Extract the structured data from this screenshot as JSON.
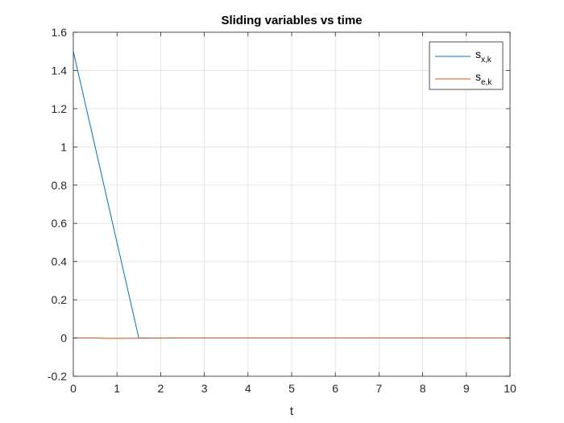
{
  "chart_data": {
    "type": "line",
    "title": "Sliding variables vs time",
    "xlabel": "t",
    "ylabel": "",
    "xlim": [
      0,
      10
    ],
    "ylim": [
      -0.2,
      1.6
    ],
    "xticks": [
      0,
      1,
      2,
      3,
      4,
      5,
      6,
      7,
      8,
      9,
      10
    ],
    "yticks": [
      -0.2,
      0,
      0.2,
      0.4,
      0.6,
      0.8,
      1,
      1.2,
      1.4,
      1.6
    ],
    "xtick_labels": [
      "0",
      "1",
      "2",
      "3",
      "4",
      "5",
      "6",
      "7",
      "8",
      "9",
      "10"
    ],
    "ytick_labels": [
      "-0.2",
      "0",
      "0.2",
      "0.4",
      "0.6",
      "0.8",
      "1",
      "1.2",
      "1.4",
      "1.6"
    ],
    "grid": true,
    "legend_position": "top-right",
    "series": [
      {
        "name": "s_{x,k}",
        "name_base": "s",
        "name_sub": "x,k",
        "color": "#0072BD",
        "x": [
          0,
          1.5,
          10
        ],
        "y": [
          1.5,
          0,
          0
        ]
      },
      {
        "name": "s_{e,k}",
        "name_base": "s",
        "name_sub": "e,k",
        "color": "#D95319",
        "x": [
          0,
          0.5,
          0.8,
          1.0,
          1.5,
          2.5,
          10
        ],
        "y": [
          0,
          0,
          -0.002,
          -0.002,
          -0.001,
          0,
          0
        ]
      }
    ]
  }
}
